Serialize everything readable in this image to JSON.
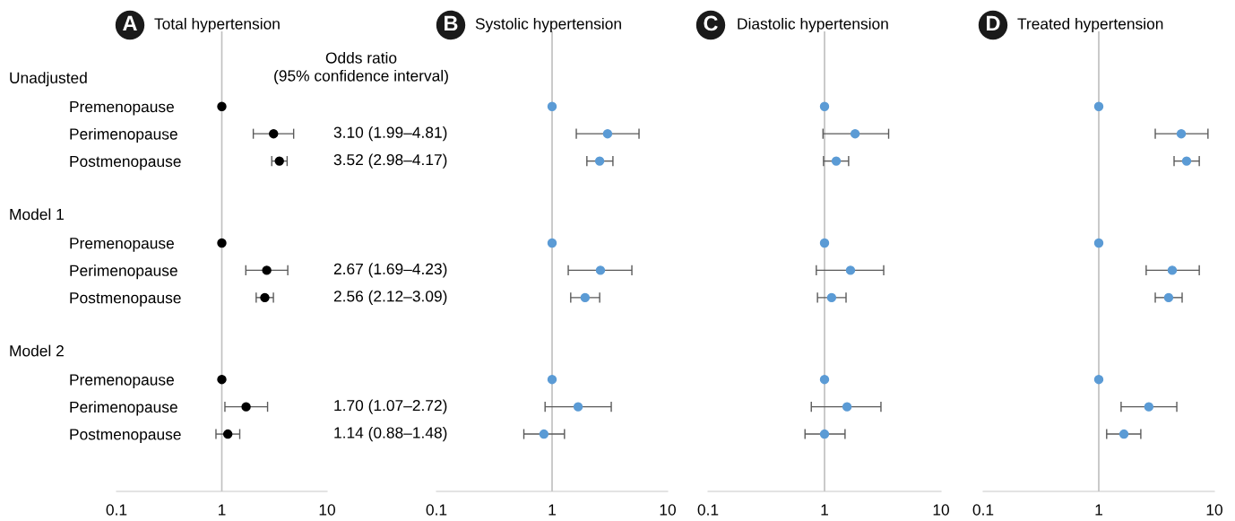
{
  "chart_data": [
    {
      "type": "scatter",
      "orientation": "horizontal",
      "title": "Total hypertension",
      "annotations": [
        "A",
        "Odds ratio\n(95% confidence interval)",
        "Unadjusted",
        "Model 1",
        "Model 2"
      ],
      "categories": [
        null,
        "Premenopause",
        "Perimenopause",
        "Postmenopause",
        null,
        null,
        "Premenopause",
        "Perimenopause",
        "Postmenopause",
        null,
        null,
        "Premenopause",
        "Perimenopause",
        "Postmenopause"
      ],
      "values": [
        null,
        1,
        3.1,
        3.52,
        null,
        null,
        1,
        2.67,
        2.56,
        null,
        null,
        1,
        1.7,
        1.14
      ],
      "errors": [
        null,
        null,
        [
          1.99,
          4.81
        ],
        [
          2.98,
          4.17
        ],
        null,
        null,
        null,
        [
          1.69,
          4.23
        ],
        [
          2.12,
          3.09
        ],
        null,
        null,
        null,
        [
          1.07,
          2.72
        ],
        [
          0.88,
          1.48
        ]
      ],
      "value_labels": [
        null,
        null,
        "3.10 (1.99–4.81)",
        "3.52 (2.98–4.17)",
        null,
        null,
        null,
        "2.67 (1.69–4.23)",
        "2.56 (2.12–3.09)",
        null,
        null,
        null,
        "1.70 (1.07–2.72)",
        "1.14 (0.88–1.48)"
      ],
      "color": "#000000",
      "marker": "circle",
      "log": "x",
      "xlim": [
        0.1,
        10
      ],
      "xticks": [
        0.1,
        1,
        10
      ],
      "ref_lines": [
        {
          "axis": "x",
          "value": 1,
          "color": "#c0c0c0"
        }
      ]
    },
    {
      "type": "scatter",
      "orientation": "horizontal",
      "title": "Systolic hypertension",
      "annotations": [
        "B"
      ],
      "values": [
        null,
        1,
        3.02,
        2.58,
        null,
        null,
        1,
        2.62,
        1.93,
        null,
        null,
        1,
        1.68,
        0.85
      ],
      "errors": [
        null,
        null,
        [
          1.62,
          5.65
        ],
        [
          2.0,
          3.36
        ],
        null,
        null,
        null,
        [
          1.38,
          4.9
        ],
        [
          1.45,
          2.58
        ],
        null,
        null,
        null,
        [
          0.87,
          3.25
        ],
        [
          0.57,
          1.28
        ]
      ],
      "color": "#5b9bd5",
      "marker": "circle",
      "log": "x",
      "xlim": [
        0.1,
        10
      ],
      "xticks": [
        0.1,
        1,
        10
      ],
      "ref_lines": [
        {
          "axis": "x",
          "value": 1,
          "color": "#c0c0c0"
        }
      ]
    },
    {
      "type": "scatter",
      "orientation": "horizontal",
      "title": "Diastolic hypertension",
      "annotations": [
        "C"
      ],
      "values": [
        null,
        1,
        1.83,
        1.26,
        null,
        null,
        1,
        1.67,
        1.15,
        null,
        null,
        1,
        1.56,
        1.0
      ],
      "errors": [
        null,
        null,
        [
          0.97,
          3.55
        ],
        [
          0.98,
          1.61
        ],
        null,
        null,
        null,
        [
          0.85,
          3.22
        ],
        [
          0.87,
          1.53
        ],
        null,
        null,
        null,
        [
          0.77,
          3.05
        ],
        [
          0.68,
          1.5
        ]
      ],
      "color": "#5b9bd5",
      "marker": "circle",
      "log": "x",
      "xlim": [
        0.1,
        10
      ],
      "xticks": [
        0.1,
        1,
        10
      ],
      "ref_lines": [
        {
          "axis": "x",
          "value": 1,
          "color": "#c0c0c0"
        }
      ]
    },
    {
      "type": "scatter",
      "orientation": "horizontal",
      "title": "Treated hypertension",
      "annotations": [
        "D"
      ],
      "values": [
        null,
        1,
        5.17,
        5.75,
        null,
        null,
        1,
        4.32,
        4.02,
        null,
        null,
        1,
        2.71,
        1.65
      ],
      "errors": [
        null,
        null,
        [
          3.08,
          8.8
        ],
        [
          4.48,
          7.4
        ],
        null,
        null,
        null,
        [
          2.57,
          7.4
        ],
        [
          3.08,
          5.26
        ],
        null,
        null,
        null,
        [
          1.56,
          4.73
        ],
        [
          1.17,
          2.31
        ]
      ],
      "color": "#5b9bd5",
      "marker": "circle",
      "log": "x",
      "xlim": [
        0.1,
        10
      ],
      "xticks": [
        0.1,
        1,
        10
      ],
      "ref_lines": [
        {
          "axis": "x",
          "value": 1,
          "color": "#c0c0c0"
        }
      ]
    }
  ]
}
